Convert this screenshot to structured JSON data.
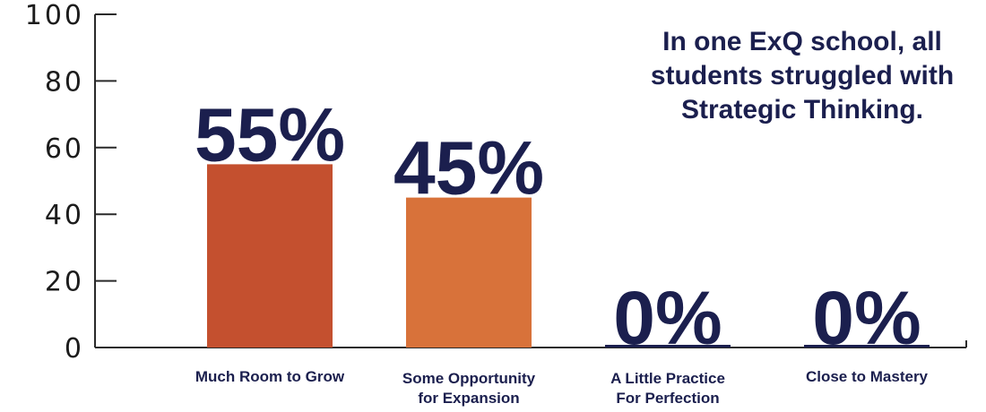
{
  "chart_data": {
    "type": "bar",
    "categories": [
      [
        "Much Room to Grow"
      ],
      [
        "Some Opportunity",
        "for Expansion"
      ],
      [
        "A Little Practice",
        "For Perfection"
      ],
      [
        "Close to Mastery"
      ]
    ],
    "values": [
      55,
      45,
      0,
      0
    ],
    "data_labels": [
      "55%",
      "45%",
      "0%",
      "0%"
    ],
    "bar_colors": [
      "#c4502f",
      "#d8723a",
      "#1b1f4e",
      "#1b1f4e"
    ],
    "ylim": [
      0,
      100
    ],
    "yticks": [
      0,
      20,
      40,
      60,
      80,
      100
    ],
    "ytick_labels": [
      "0",
      "20",
      "40",
      "60",
      "80",
      "100"
    ],
    "title": "",
    "xlabel": "",
    "ylabel": "",
    "grid": false,
    "annotation": "In one ExQ school, all students struggled with Strategic Thinking.",
    "text_color": "#1b1f4e"
  }
}
